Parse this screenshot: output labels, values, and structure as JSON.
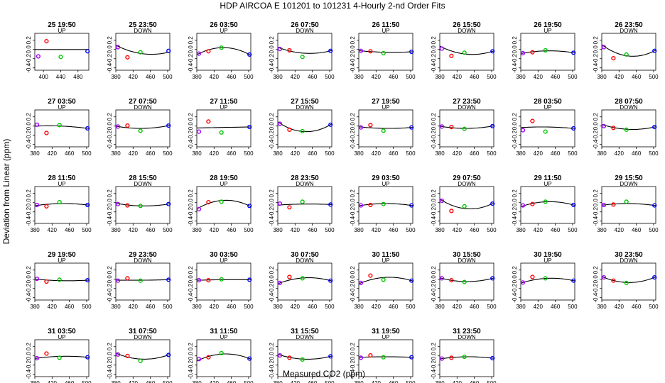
{
  "chart_data": {
    "type": "scatter",
    "title": "HDP   AIRCOA E   101201 to 101231   4-Hourly 2-nd Order Fits",
    "xlabel": "Measured CO2 (ppm)",
    "ylabel": "Deviation from Linear (ppm)",
    "ylim": [
      -0.45,
      0.35
    ],
    "yticks": [
      -0.4,
      -0.2,
      0.0,
      0.2
    ],
    "ytick_labels": [
      "-0.4",
      "-0.2",
      "0.0",
      "0.2"
    ],
    "default_xlim": [
      380,
      505
    ],
    "default_xticks": [
      380,
      420,
      460,
      500
    ],
    "point_colors": [
      "#a000ff",
      "#ff0000",
      "#00c800",
      "#0000ff"
    ],
    "panels": [
      {
        "title": "25 19:50",
        "dir": "UP",
        "xlim": [
          380,
          505
        ],
        "xticks": [
          400,
          440,
          480
        ],
        "points": [
          [
            388,
            -0.15
          ],
          [
            407,
            0.18
          ],
          [
            440,
            -0.16
          ],
          [
            502,
            -0.04
          ]
        ],
        "curve": [
          0,
          0,
          0
        ]
      },
      {
        "title": "25 23:50",
        "dir": "DOWN",
        "points": [
          [
            385,
            0.05
          ],
          [
            407,
            -0.17
          ],
          [
            437,
            -0.06
          ],
          [
            502,
            -0.03
          ]
        ],
        "curve": [
          0.07,
          -0.09,
          -0.06
        ]
      },
      {
        "title": "26 03:50",
        "dir": "UP",
        "points": [
          [
            385,
            -0.09
          ],
          [
            407,
            -0.04
          ],
          [
            437,
            0.04
          ],
          [
            502,
            -0.11
          ]
        ],
        "curve": [
          -0.09,
          0.04,
          -0.11
        ]
      },
      {
        "title": "26 07:50",
        "dir": "DOWN",
        "points": [
          [
            385,
            0.01
          ],
          [
            407,
            -0.02
          ],
          [
            437,
            -0.16
          ],
          [
            502,
            -0.03
          ]
        ],
        "curve": [
          0.03,
          -0.08,
          -0.03
        ]
      },
      {
        "title": "26 11:50",
        "dir": "UP",
        "points": [
          [
            385,
            -0.03
          ],
          [
            407,
            -0.04
          ],
          [
            437,
            -0.08
          ],
          [
            502,
            -0.05
          ]
        ],
        "curve": [
          -0.03,
          -0.06,
          -0.05
        ]
      },
      {
        "title": "26 15:50",
        "dir": "DOWN",
        "points": [
          [
            385,
            0.02
          ],
          [
            407,
            -0.14
          ],
          [
            437,
            -0.07
          ],
          [
            502,
            -0.04
          ]
        ],
        "curve": [
          0.05,
          -0.1,
          -0.04
        ]
      },
      {
        "title": "26 19:50",
        "dir": "UP",
        "points": [
          [
            385,
            -0.08
          ],
          [
            407,
            -0.06
          ],
          [
            437,
            -0.02
          ],
          [
            502,
            -0.07
          ]
        ],
        "curve": [
          -0.08,
          -0.03,
          -0.07
        ]
      },
      {
        "title": "26 23:50",
        "dir": "DOWN",
        "points": [
          [
            385,
            0.05
          ],
          [
            407,
            -0.19
          ],
          [
            437,
            -0.11
          ],
          [
            502,
            -0.03
          ]
        ],
        "curve": [
          0.07,
          -0.14,
          -0.03
        ]
      },
      {
        "title": "27 03:50",
        "dir": "UP",
        "points": [
          [
            385,
            0.03
          ],
          [
            407,
            -0.15
          ],
          [
            437,
            0.02
          ],
          [
            502,
            -0.05
          ]
        ],
        "curve": [
          0,
          0,
          -0.05
        ]
      },
      {
        "title": "27 07:50",
        "dir": "DOWN",
        "points": [
          [
            385,
            -0.01
          ],
          [
            407,
            0.01
          ],
          [
            437,
            -0.1
          ],
          [
            502,
            0.01
          ]
        ],
        "curve": [
          -0.01,
          -0.05,
          0.01
        ]
      },
      {
        "title": "27 11:50",
        "dir": "UP",
        "points": [
          [
            385,
            -0.12
          ],
          [
            407,
            0.1
          ],
          [
            437,
            -0.14
          ],
          [
            502,
            -0.02
          ]
        ],
        "curve": [
          -0.04,
          -0.03,
          -0.02
        ]
      },
      {
        "title": "27 15:50",
        "dir": "DOWN",
        "points": [
          [
            385,
            0.05
          ],
          [
            407,
            -0.08
          ],
          [
            437,
            -0.11
          ],
          [
            502,
            0.03
          ]
        ],
        "curve": [
          0.06,
          -0.12,
          0.03
        ]
      },
      {
        "title": "27 19:50",
        "dir": "UP",
        "points": [
          [
            385,
            -0.03
          ],
          [
            407,
            0.02
          ],
          [
            437,
            -0.1
          ],
          [
            502,
            -0.03
          ]
        ],
        "curve": [
          -0.02,
          -0.05,
          -0.03
        ]
      },
      {
        "title": "27 23:50",
        "dir": "DOWN",
        "points": [
          [
            385,
            -0.01
          ],
          [
            407,
            -0.02
          ],
          [
            437,
            -0.06
          ],
          [
            502,
            0
          ]
        ],
        "curve": [
          -0.01,
          -0.05,
          0
        ]
      },
      {
        "title": "28 03:50",
        "dir": "UP",
        "points": [
          [
            385,
            -0.09
          ],
          [
            407,
            0.11
          ],
          [
            437,
            -0.12
          ],
          [
            502,
            -0.05
          ]
        ],
        "curve": [
          -0.03,
          -0.02,
          -0.05
        ]
      },
      {
        "title": "28 07:50",
        "dir": "DOWN",
        "points": [
          [
            385,
            0
          ],
          [
            407,
            -0.04
          ],
          [
            437,
            -0.08
          ],
          [
            502,
            -0.02
          ]
        ],
        "curve": [
          0.02,
          -0.07,
          -0.02
        ]
      },
      {
        "title": "28 11:50",
        "dir": "UP",
        "points": [
          [
            385,
            -0.05
          ],
          [
            407,
            -0.08
          ],
          [
            437,
            0.01
          ],
          [
            502,
            -0.05
          ]
        ],
        "curve": [
          -0.06,
          -0.02,
          -0.05
        ]
      },
      {
        "title": "28 15:50",
        "dir": "DOWN",
        "points": [
          [
            385,
            -0.03
          ],
          [
            407,
            -0.06
          ],
          [
            437,
            -0.07
          ],
          [
            502,
            -0.03
          ]
        ],
        "curve": [
          -0.02,
          -0.07,
          -0.03
        ]
      },
      {
        "title": "28 19:50",
        "dir": "UP",
        "points": [
          [
            385,
            -0.14
          ],
          [
            407,
            0.01
          ],
          [
            437,
            0.02
          ],
          [
            502,
            -0.07
          ]
        ],
        "curve": [
          -0.11,
          0.05,
          -0.07
        ]
      },
      {
        "title": "28 23:50",
        "dir": "DOWN",
        "points": [
          [
            385,
            -0.02
          ],
          [
            407,
            -0.1
          ],
          [
            437,
            0.02
          ],
          [
            502,
            -0.04
          ]
        ],
        "curve": [
          -0.05,
          -0.03,
          -0.04
        ]
      },
      {
        "title": "29 03:50",
        "dir": "UP",
        "points": [
          [
            385,
            -0.06
          ],
          [
            407,
            -0.05
          ],
          [
            437,
            -0.03
          ],
          [
            502,
            -0.06
          ]
        ],
        "curve": [
          -0.06,
          -0.02,
          -0.06
        ]
      },
      {
        "title": "29 07:50",
        "dir": "DOWN",
        "points": [
          [
            385,
            0.04
          ],
          [
            407,
            -0.18
          ],
          [
            437,
            -0.08
          ],
          [
            502,
            -0.02
          ]
        ],
        "curve": [
          0.05,
          -0.13,
          -0.02
        ]
      },
      {
        "title": "29 11:50",
        "dir": "UP",
        "points": [
          [
            385,
            -0.06
          ],
          [
            407,
            -0.03
          ],
          [
            437,
            0.02
          ],
          [
            502,
            -0.05
          ]
        ],
        "curve": [
          -0.07,
          0.02,
          -0.05
        ]
      },
      {
        "title": "29 15:50",
        "dir": "DOWN",
        "points": [
          [
            385,
            -0.05
          ],
          [
            407,
            -0.04
          ],
          [
            437,
            0.02
          ],
          [
            502,
            -0.06
          ]
        ],
        "curve": [
          -0.05,
          -0.02,
          -0.06
        ]
      },
      {
        "title": "29 19:50",
        "dir": "UP",
        "points": [
          [
            385,
            0.01
          ],
          [
            407,
            -0.05
          ],
          [
            437,
            -0.01
          ],
          [
            502,
            -0.02
          ]
        ],
        "curve": [
          0,
          -0.03,
          -0.02
        ]
      },
      {
        "title": "29 23:50",
        "dir": "DOWN",
        "points": [
          [
            385,
            -0.03
          ],
          [
            407,
            0.02
          ],
          [
            437,
            -0.03
          ],
          [
            502,
            -0.01
          ]
        ],
        "curve": [
          -0.02,
          -0.02,
          -0.01
        ]
      },
      {
        "title": "30 03:50",
        "dir": "UP",
        "points": [
          [
            385,
            -0.02
          ],
          [
            407,
            -0.02
          ],
          [
            437,
            0
          ],
          [
            502,
            -0.01
          ]
        ],
        "curve": [
          -0.02,
          -0.01,
          -0.01
        ]
      },
      {
        "title": "30 07:50",
        "dir": "DOWN",
        "points": [
          [
            385,
            -0.08
          ],
          [
            407,
            0.05
          ],
          [
            437,
            0.02
          ],
          [
            502,
            -0.03
          ]
        ],
        "curve": [
          -0.08,
          0.03,
          -0.03
        ]
      },
      {
        "title": "30 11:50",
        "dir": "UP",
        "points": [
          [
            385,
            -0.08
          ],
          [
            407,
            0.08
          ],
          [
            437,
            -0.01
          ],
          [
            502,
            -0.03
          ]
        ],
        "curve": [
          -0.08,
          0.04,
          -0.03
        ]
      },
      {
        "title": "30 15:50",
        "dir": "DOWN",
        "points": [
          [
            385,
            0.02
          ],
          [
            407,
            -0.02
          ],
          [
            437,
            -0.06
          ],
          [
            502,
            0.02
          ]
        ],
        "curve": [
          0.02,
          -0.05,
          0.02
        ]
      },
      {
        "title": "30 19:50",
        "dir": "UP",
        "points": [
          [
            385,
            -0.07
          ],
          [
            407,
            0.05
          ],
          [
            437,
            0.02
          ],
          [
            502,
            -0.03
          ]
        ],
        "curve": [
          -0.07,
          0.02,
          -0.03
        ]
      },
      {
        "title": "30 23:50",
        "dir": "DOWN",
        "points": [
          [
            385,
            0.04
          ],
          [
            407,
            -0.03
          ],
          [
            437,
            -0.08
          ],
          [
            502,
            0.04
          ]
        ],
        "curve": [
          0.04,
          -0.07,
          0.04
        ]
      },
      {
        "title": "31 03:50",
        "dir": "UP",
        "points": [
          [
            385,
            -0.05
          ],
          [
            407,
            0.05
          ],
          [
            437,
            -0.04
          ],
          [
            502,
            -0.03
          ]
        ],
        "curve": [
          -0.05,
          -0.01,
          -0.03
        ]
      },
      {
        "title": "31 07:50",
        "dir": "DOWN",
        "points": [
          [
            385,
            0.03
          ],
          [
            407,
            0
          ],
          [
            437,
            -0.11
          ],
          [
            502,
            0.02
          ]
        ],
        "curve": [
          0.04,
          -0.07,
          0.02
        ]
      },
      {
        "title": "31 11:50",
        "dir": "UP",
        "points": [
          [
            385,
            -0.07
          ],
          [
            407,
            -0.03
          ],
          [
            437,
            0.06
          ],
          [
            502,
            -0.06
          ]
        ],
        "curve": [
          -0.09,
          0.04,
          -0.06
        ]
      },
      {
        "title": "31 15:50",
        "dir": "DOWN",
        "points": [
          [
            385,
            0.01
          ],
          [
            407,
            -0.04
          ],
          [
            437,
            -0.08
          ],
          [
            502,
            -0.01
          ]
        ],
        "curve": [
          0.02,
          -0.07,
          -0.01
        ]
      },
      {
        "title": "31 19:50",
        "dir": "UP",
        "points": [
          [
            385,
            -0.04
          ],
          [
            407,
            0.01
          ],
          [
            437,
            -0.03
          ],
          [
            502,
            -0.03
          ]
        ],
        "curve": [
          -0.03,
          -0.02,
          -0.03
        ]
      },
      {
        "title": "31 23:50",
        "dir": "DOWN",
        "points": [
          [
            385,
            -0.06
          ],
          [
            407,
            -0.04
          ],
          [
            437,
            -0.02
          ],
          [
            502,
            -0.05
          ]
        ],
        "curve": [
          -0.06,
          -0.02,
          -0.05
        ]
      }
    ]
  }
}
